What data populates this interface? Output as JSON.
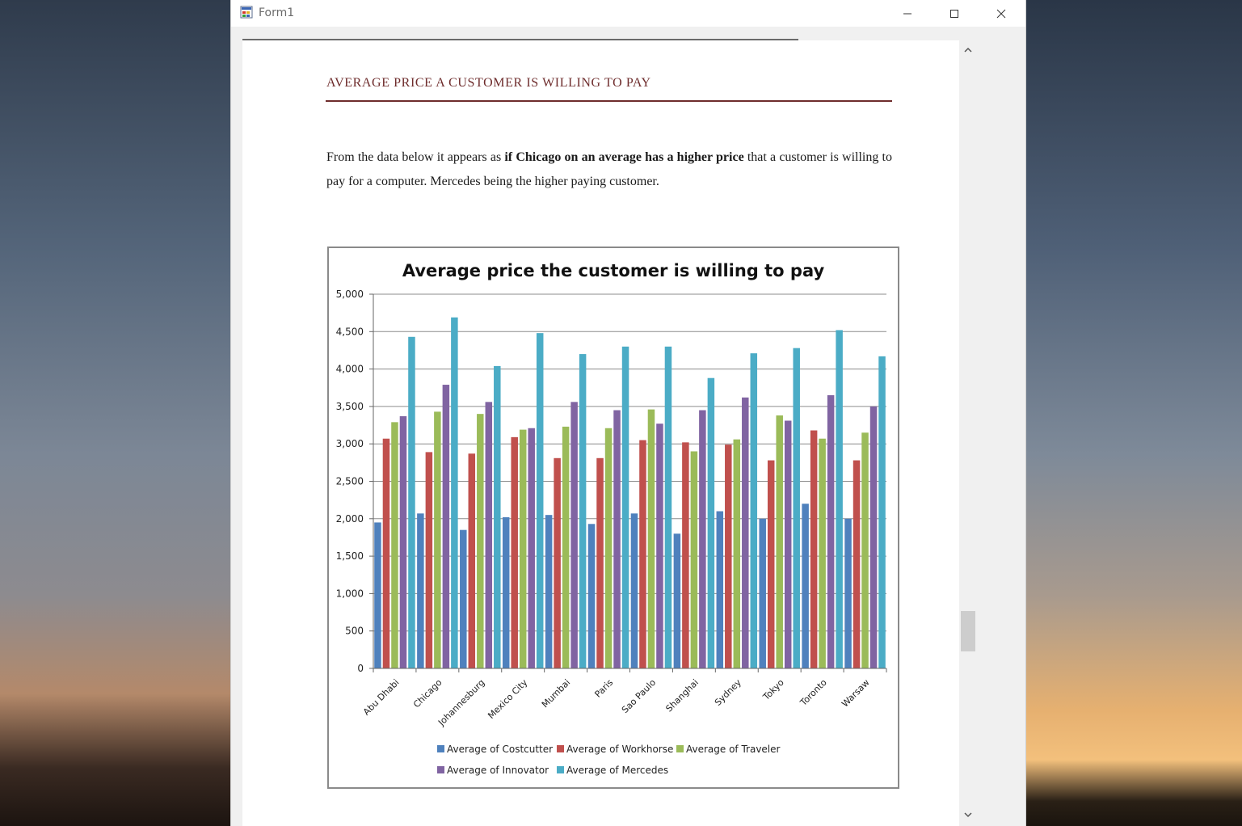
{
  "window": {
    "title": "Form1"
  },
  "document": {
    "heading": "AVERAGE PRICE A CUSTOMER IS WILLING TO PAY",
    "paragraph": {
      "part1": "From the data below it appears as ",
      "bold": "if Chicago on an average has a higher price",
      "part2": " that a customer is willing to pay for a computer. Mercedes being the higher paying customer."
    }
  },
  "chart_data": {
    "type": "bar",
    "title": "Average price the customer is willing to pay",
    "xlabel": "",
    "ylabel": "",
    "ylim": [
      0,
      5000
    ],
    "yticks": [
      0,
      500,
      1000,
      1500,
      2000,
      2500,
      3000,
      3500,
      4000,
      4500,
      5000
    ],
    "ytick_labels": [
      "0",
      "500",
      "1,000",
      "1,500",
      "2,000",
      "2,500",
      "3,000",
      "3,500",
      "4,000",
      "4,500",
      "5,000"
    ],
    "grid": true,
    "legend_position": "bottom",
    "categories": [
      "Abu Dhabi",
      "Chicago",
      "Johannesburg",
      "Mexico City",
      "Mumbai",
      "Paris",
      "Sao Paulo",
      "Shanghai",
      "Sydney",
      "Tokyo",
      "Toronto",
      "Warsaw"
    ],
    "series": [
      {
        "name": "Average of Costcutter",
        "color": "#4f81bd",
        "values": [
          1950,
          2070,
          1850,
          2020,
          2050,
          1930,
          2070,
          1800,
          2100,
          2000,
          2200,
          2000
        ]
      },
      {
        "name": "Average of Workhorse",
        "color": "#c0504d",
        "values": [
          3070,
          2890,
          2870,
          3090,
          2810,
          2810,
          3050,
          3020,
          2990,
          2780,
          3180,
          2780
        ]
      },
      {
        "name": "Average of Traveler",
        "color": "#9bbb59",
        "values": [
          3290,
          3430,
          3400,
          3190,
          3230,
          3210,
          3460,
          2900,
          3060,
          3380,
          3070,
          3150
        ]
      },
      {
        "name": "Average of Innovator",
        "color": "#8064a2",
        "values": [
          3370,
          3790,
          3560,
          3210,
          3560,
          3450,
          3270,
          3450,
          3620,
          3310,
          3650,
          3500
        ]
      },
      {
        "name": "Average of Mercedes",
        "color": "#4bacc6",
        "values": [
          4430,
          4690,
          4040,
          4480,
          4200,
          4300,
          4300,
          3880,
          4210,
          4280,
          4520,
          4170
        ]
      }
    ]
  }
}
